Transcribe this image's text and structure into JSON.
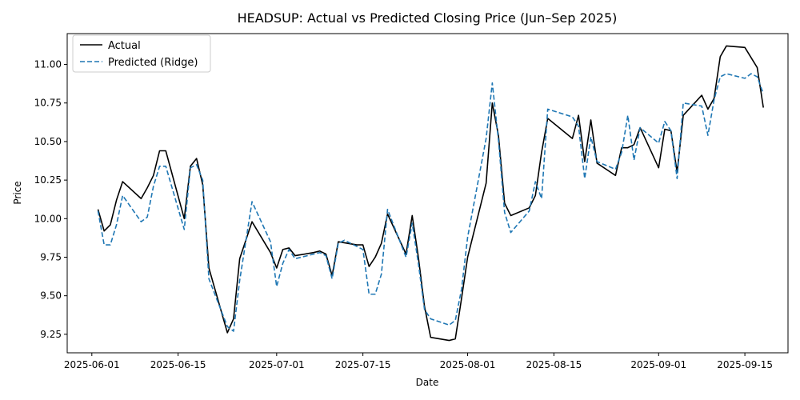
{
  "chart_data": {
    "type": "line",
    "title": "HEADSUP: Actual vs Predicted Closing Price (Jun–Sep 2025)",
    "xlabel": "Date",
    "ylabel": "Price",
    "xlim": [
      "2025-05-28",
      "2025-09-22"
    ],
    "ylim": [
      9.13,
      11.2
    ],
    "x_ticks": [
      "2025-06-01",
      "2025-06-15",
      "2025-07-01",
      "2025-07-15",
      "2025-08-01",
      "2025-08-15",
      "2025-09-01",
      "2025-09-15"
    ],
    "y_ticks": [
      9.25,
      9.5,
      9.75,
      10.0,
      10.25,
      10.5,
      10.75,
      11.0
    ],
    "y_tick_labels": [
      "9.25",
      "9.50",
      "9.75",
      "10.00",
      "10.25",
      "10.50",
      "10.75",
      "11.00"
    ],
    "legend_position": "upper-left",
    "grid": false,
    "series": [
      {
        "name": "Actual",
        "color": "#000000",
        "style": "solid",
        "points": [
          [
            "2025-06-02",
            10.06
          ],
          [
            "2025-06-03",
            9.92
          ],
          [
            "2025-06-04",
            9.96
          ],
          [
            "2025-06-05",
            10.12
          ],
          [
            "2025-06-06",
            10.24
          ],
          [
            "2025-06-09",
            10.13
          ],
          [
            "2025-06-10",
            10.2
          ],
          [
            "2025-06-11",
            10.28
          ],
          [
            "2025-06-12",
            10.44
          ],
          [
            "2025-06-13",
            10.44
          ],
          [
            "2025-06-16",
            10.0
          ],
          [
            "2025-06-17",
            10.34
          ],
          [
            "2025-06-18",
            10.39
          ],
          [
            "2025-06-19",
            10.22
          ],
          [
            "2025-06-20",
            9.68
          ],
          [
            "2025-06-23",
            9.26
          ],
          [
            "2025-06-24",
            9.35
          ],
          [
            "2025-06-25",
            9.74
          ],
          [
            "2025-06-27",
            9.98
          ],
          [
            "2025-06-30",
            9.78
          ],
          [
            "2025-07-01",
            9.68
          ],
          [
            "2025-07-02",
            9.8
          ],
          [
            "2025-07-03",
            9.81
          ],
          [
            "2025-07-04",
            9.76
          ],
          [
            "2025-07-07",
            9.78
          ],
          [
            "2025-07-08",
            9.79
          ],
          [
            "2025-07-09",
            9.77
          ],
          [
            "2025-07-10",
            9.63
          ],
          [
            "2025-07-11",
            9.85
          ],
          [
            "2025-07-14",
            9.83
          ],
          [
            "2025-07-15",
            9.83
          ],
          [
            "2025-07-16",
            9.69
          ],
          [
            "2025-07-17",
            9.75
          ],
          [
            "2025-07-18",
            9.84
          ],
          [
            "2025-07-19",
            10.03
          ],
          [
            "2025-07-22",
            9.77
          ],
          [
            "2025-07-23",
            10.02
          ],
          [
            "2025-07-24",
            9.75
          ],
          [
            "2025-07-25",
            9.43
          ],
          [
            "2025-07-26",
            9.23
          ],
          [
            "2025-07-29",
            9.21
          ],
          [
            "2025-07-30",
            9.22
          ],
          [
            "2025-07-31",
            9.48
          ],
          [
            "2025-08-01",
            9.75
          ],
          [
            "2025-08-04",
            10.23
          ],
          [
            "2025-08-05",
            10.75
          ],
          [
            "2025-08-06",
            10.54
          ],
          [
            "2025-08-07",
            10.1
          ],
          [
            "2025-08-08",
            10.02
          ],
          [
            "2025-08-11",
            10.07
          ],
          [
            "2025-08-12",
            10.15
          ],
          [
            "2025-08-13",
            10.43
          ],
          [
            "2025-08-14",
            10.65
          ],
          [
            "2025-08-18",
            10.52
          ],
          [
            "2025-08-19",
            10.67
          ],
          [
            "2025-08-20",
            10.37
          ],
          [
            "2025-08-21",
            10.64
          ],
          [
            "2025-08-22",
            10.36
          ],
          [
            "2025-08-25",
            10.28
          ],
          [
            "2025-08-26",
            10.46
          ],
          [
            "2025-08-27",
            10.46
          ],
          [
            "2025-08-28",
            10.48
          ],
          [
            "2025-08-29",
            10.59
          ],
          [
            "2025-09-01",
            10.33
          ],
          [
            "2025-09-02",
            10.58
          ],
          [
            "2025-09-03",
            10.57
          ],
          [
            "2025-09-04",
            10.3
          ],
          [
            "2025-09-05",
            10.67
          ],
          [
            "2025-09-08",
            10.8
          ],
          [
            "2025-09-09",
            10.71
          ],
          [
            "2025-09-10",
            10.78
          ],
          [
            "2025-09-11",
            11.05
          ],
          [
            "2025-09-12",
            11.12
          ],
          [
            "2025-09-15",
            11.11
          ],
          [
            "2025-09-17",
            10.98
          ],
          [
            "2025-09-18",
            10.72
          ]
        ]
      },
      {
        "name": "Predicted (Ridge)",
        "color": "#1f77b4",
        "style": "dashed",
        "points": [
          [
            "2025-06-02",
            10.05
          ],
          [
            "2025-06-03",
            9.83
          ],
          [
            "2025-06-04",
            9.83
          ],
          [
            "2025-06-05",
            9.96
          ],
          [
            "2025-06-06",
            10.15
          ],
          [
            "2025-06-09",
            9.98
          ],
          [
            "2025-06-10",
            10.01
          ],
          [
            "2025-06-11",
            10.21
          ],
          [
            "2025-06-12",
            10.34
          ],
          [
            "2025-06-13",
            10.34
          ],
          [
            "2025-06-16",
            9.93
          ],
          [
            "2025-06-17",
            10.33
          ],
          [
            "2025-06-18",
            10.35
          ],
          [
            "2025-06-19",
            10.25
          ],
          [
            "2025-06-20",
            9.61
          ],
          [
            "2025-06-23",
            9.3
          ],
          [
            "2025-06-24",
            9.27
          ],
          [
            "2025-06-25",
            9.6
          ],
          [
            "2025-06-27",
            10.11
          ],
          [
            "2025-06-30",
            9.85
          ],
          [
            "2025-07-01",
            9.56
          ],
          [
            "2025-07-02",
            9.71
          ],
          [
            "2025-07-03",
            9.8
          ],
          [
            "2025-07-04",
            9.74
          ],
          [
            "2025-07-07",
            9.77
          ],
          [
            "2025-07-08",
            9.78
          ],
          [
            "2025-07-09",
            9.76
          ],
          [
            "2025-07-10",
            9.61
          ],
          [
            "2025-07-11",
            9.84
          ],
          [
            "2025-07-12",
            9.86
          ],
          [
            "2025-07-15",
            9.8
          ],
          [
            "2025-07-16",
            9.51
          ],
          [
            "2025-07-17",
            9.51
          ],
          [
            "2025-07-18",
            9.64
          ],
          [
            "2025-07-19",
            10.06
          ],
          [
            "2025-07-22",
            9.75
          ],
          [
            "2025-07-23",
            9.97
          ],
          [
            "2025-07-24",
            9.71
          ],
          [
            "2025-07-25",
            9.41
          ],
          [
            "2025-07-26",
            9.35
          ],
          [
            "2025-07-29",
            9.31
          ],
          [
            "2025-07-30",
            9.34
          ],
          [
            "2025-07-31",
            9.54
          ],
          [
            "2025-08-01",
            9.88
          ],
          [
            "2025-08-04",
            10.52
          ],
          [
            "2025-08-05",
            10.88
          ],
          [
            "2025-08-06",
            10.51
          ],
          [
            "2025-08-07",
            10.04
          ],
          [
            "2025-08-08",
            9.91
          ],
          [
            "2025-08-11",
            10.05
          ],
          [
            "2025-08-12",
            10.24
          ],
          [
            "2025-08-13",
            10.13
          ],
          [
            "2025-08-14",
            10.71
          ],
          [
            "2025-08-18",
            10.66
          ],
          [
            "2025-08-19",
            10.6
          ],
          [
            "2025-08-20",
            10.26
          ],
          [
            "2025-08-21",
            10.53
          ],
          [
            "2025-08-22",
            10.37
          ],
          [
            "2025-08-25",
            10.32
          ],
          [
            "2025-08-26",
            10.43
          ],
          [
            "2025-08-27",
            10.67
          ],
          [
            "2025-08-28",
            10.38
          ],
          [
            "2025-08-29",
            10.59
          ],
          [
            "2025-09-01",
            10.49
          ],
          [
            "2025-09-02",
            10.63
          ],
          [
            "2025-09-03",
            10.57
          ],
          [
            "2025-09-04",
            10.26
          ],
          [
            "2025-09-05",
            10.75
          ],
          [
            "2025-09-08",
            10.73
          ],
          [
            "2025-09-09",
            10.54
          ],
          [
            "2025-09-10",
            10.77
          ],
          [
            "2025-09-11",
            10.92
          ],
          [
            "2025-09-12",
            10.94
          ],
          [
            "2025-09-15",
            10.91
          ],
          [
            "2025-09-16",
            10.94
          ],
          [
            "2025-09-17",
            10.92
          ],
          [
            "2025-09-18",
            10.81
          ]
        ]
      }
    ]
  }
}
